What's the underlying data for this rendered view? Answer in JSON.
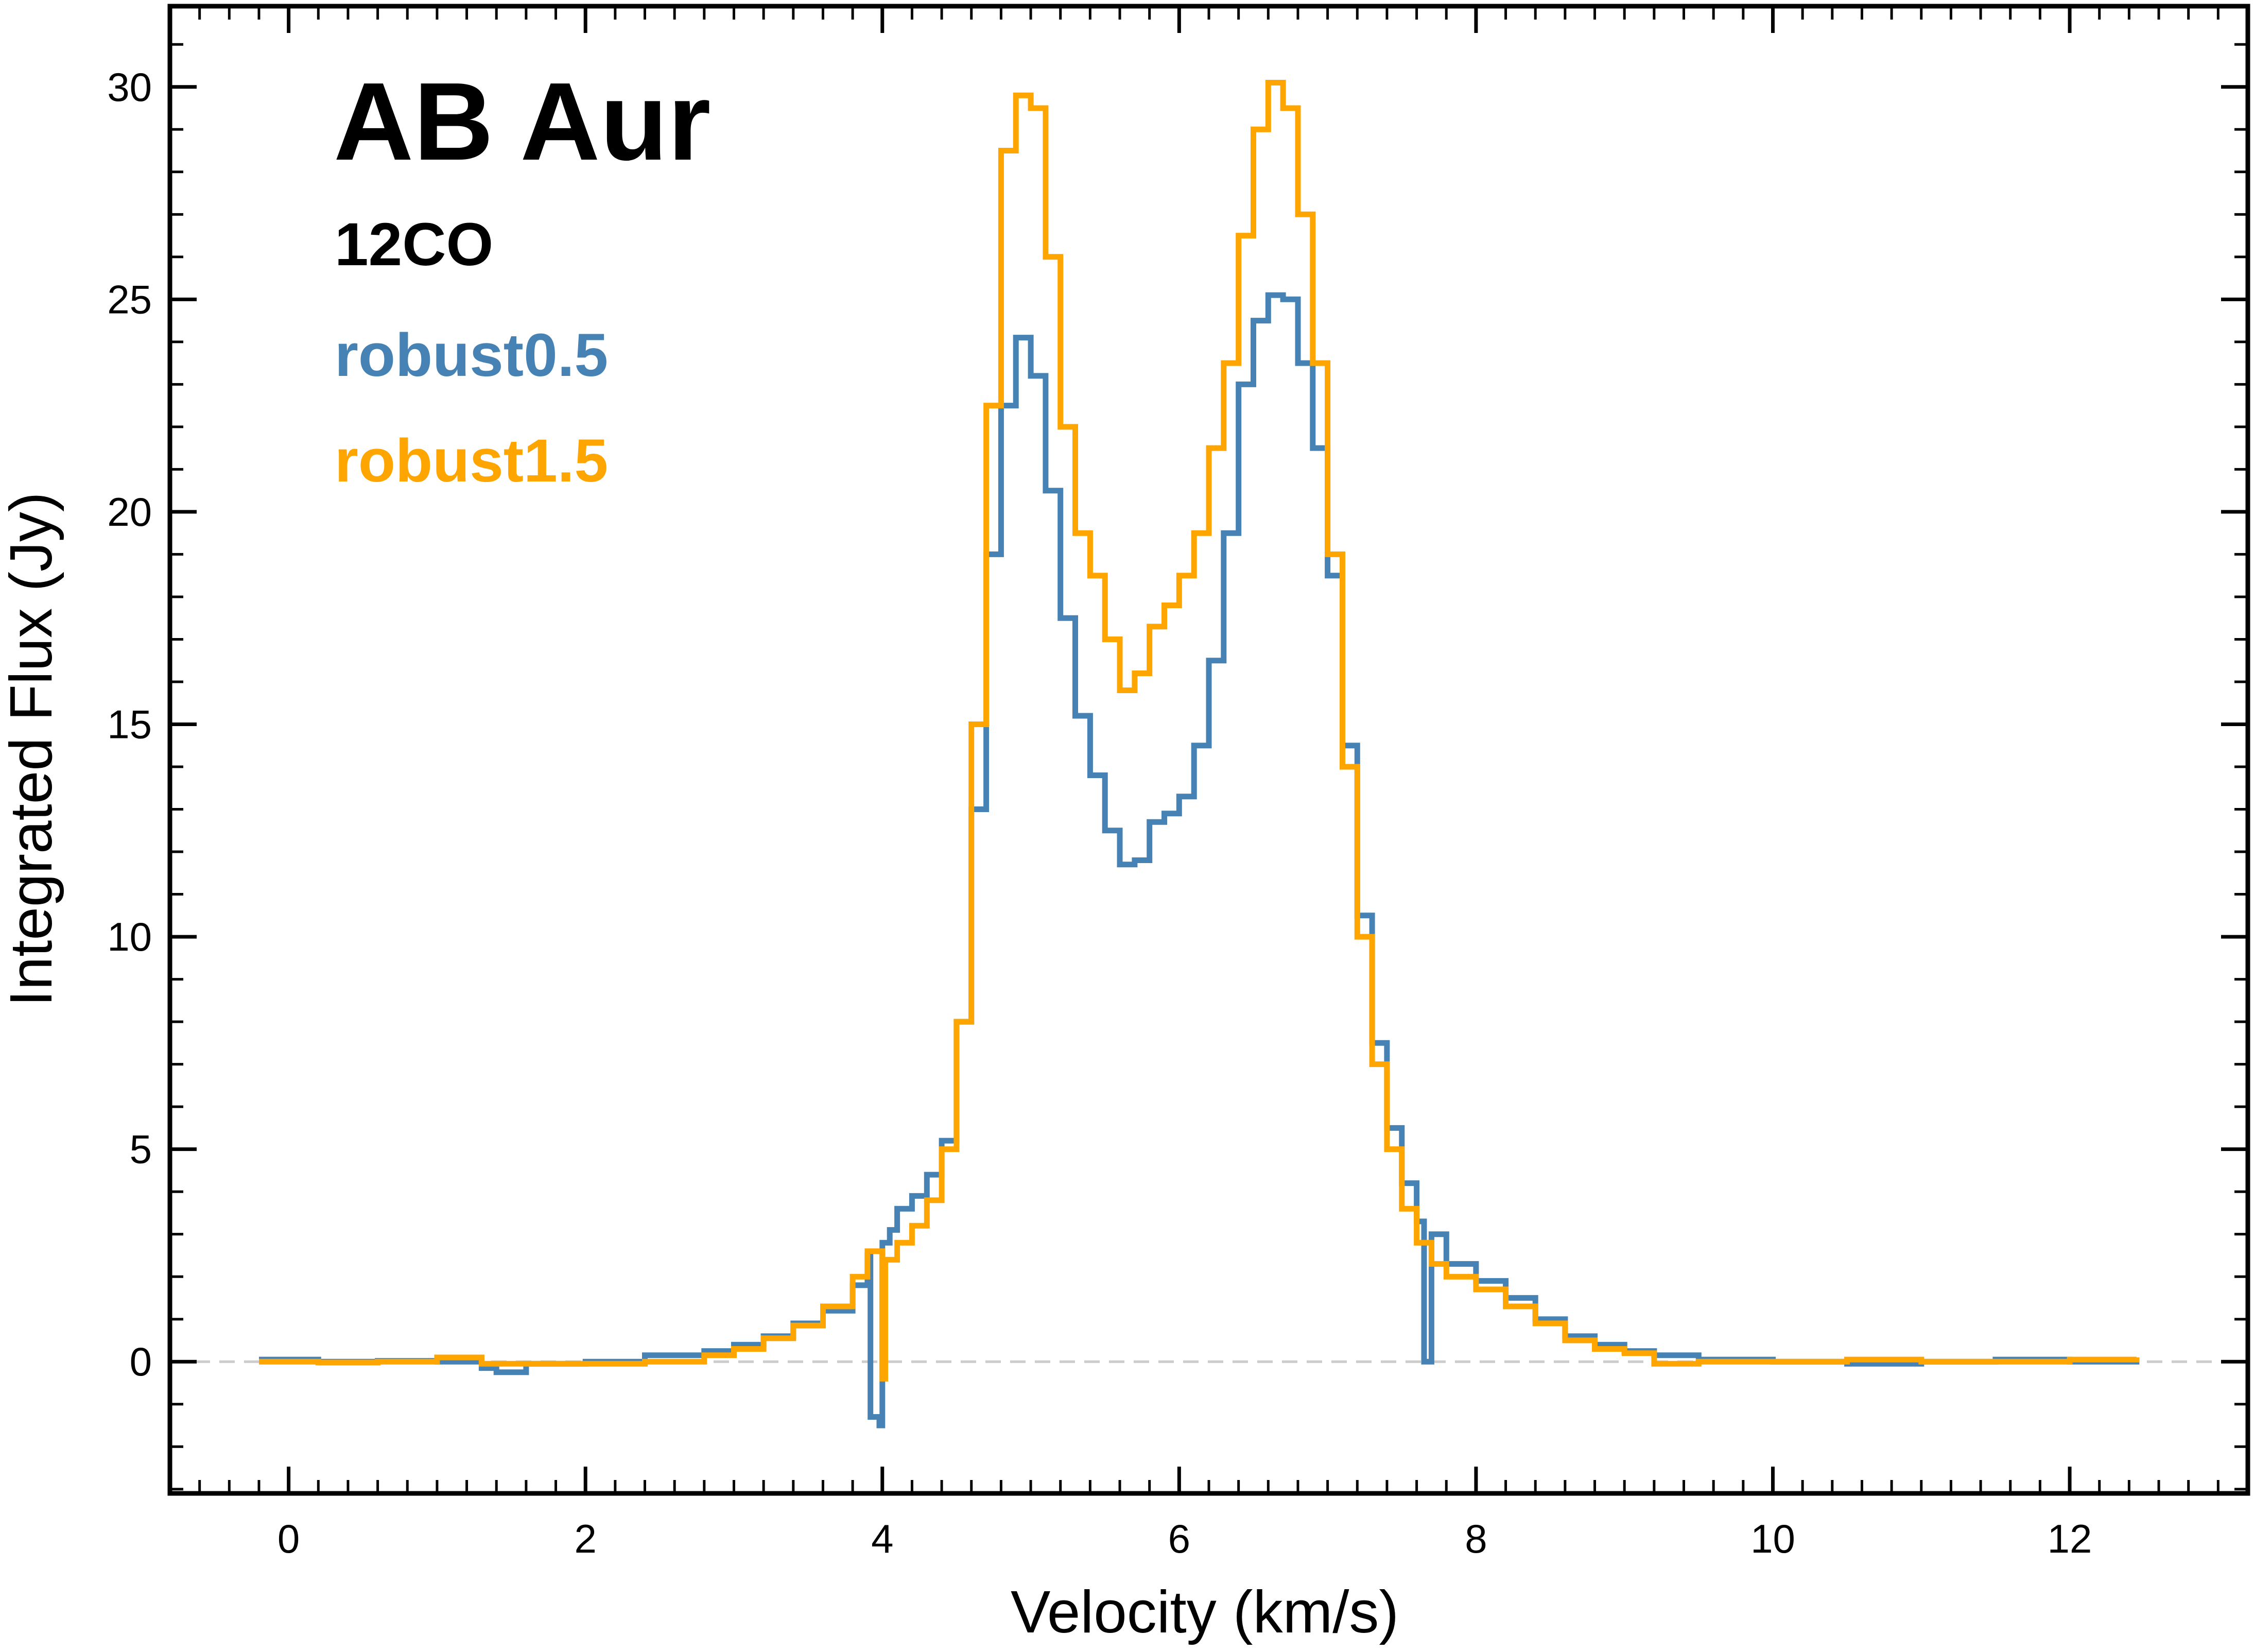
{
  "chart_data": {
    "type": "line",
    "step": true,
    "title": "AB Aur",
    "subtitle": "12CO",
    "xlabel": "Velocity (km/s)",
    "ylabel": "Integrated Flux (Jy)",
    "xlim": [
      -0.8,
      13.2
    ],
    "ylim": [
      -3.1,
      31.9
    ],
    "xticks": [
      0,
      2,
      4,
      6,
      8,
      10,
      12
    ],
    "yticks": [
      0,
      5,
      10,
      15,
      20,
      25,
      30
    ],
    "xtick_labels": [
      "0",
      "2",
      "4",
      "6",
      "8",
      "10",
      "12"
    ],
    "ytick_labels": [
      "0",
      "5",
      "10",
      "15",
      "20",
      "25",
      "30"
    ],
    "zero_line": true,
    "grid": false,
    "legend_position": "top-left",
    "series": [
      {
        "name": "robust0.5",
        "color": "#4682B4",
        "points": [
          [
            -0.2,
            0.05
          ],
          [
            0.2,
            0.0
          ],
          [
            0.6,
            0.02
          ],
          [
            1.0,
            0.0
          ],
          [
            1.3,
            -0.15
          ],
          [
            1.4,
            -0.25
          ],
          [
            1.6,
            -0.05
          ],
          [
            2.0,
            0.0
          ],
          [
            2.4,
            0.15
          ],
          [
            2.8,
            0.25
          ],
          [
            3.0,
            0.4
          ],
          [
            3.2,
            0.6
          ],
          [
            3.4,
            0.9
          ],
          [
            3.6,
            1.2
          ],
          [
            3.8,
            1.8
          ],
          [
            3.9,
            2.5
          ],
          [
            3.92,
            -1.3
          ],
          [
            3.98,
            -1.5
          ],
          [
            4.0,
            2.8
          ],
          [
            4.05,
            3.1
          ],
          [
            4.1,
            3.6
          ],
          [
            4.2,
            3.9
          ],
          [
            4.3,
            4.4
          ],
          [
            4.4,
            5.2
          ],
          [
            4.5,
            8.0
          ],
          [
            4.6,
            13.0
          ],
          [
            4.7,
            19.0
          ],
          [
            4.8,
            22.5
          ],
          [
            4.9,
            24.1
          ],
          [
            5.0,
            23.2
          ],
          [
            5.1,
            20.5
          ],
          [
            5.2,
            17.5
          ],
          [
            5.3,
            15.2
          ],
          [
            5.4,
            13.8
          ],
          [
            5.5,
            12.5
          ],
          [
            5.6,
            11.7
          ],
          [
            5.7,
            11.8
          ],
          [
            5.8,
            12.7
          ],
          [
            5.9,
            12.9
          ],
          [
            6.0,
            13.3
          ],
          [
            6.1,
            14.5
          ],
          [
            6.2,
            16.5
          ],
          [
            6.3,
            19.5
          ],
          [
            6.4,
            23.0
          ],
          [
            6.5,
            24.5
          ],
          [
            6.6,
            25.1
          ],
          [
            6.7,
            25.0
          ],
          [
            6.8,
            23.5
          ],
          [
            6.9,
            21.5
          ],
          [
            7.0,
            18.5
          ],
          [
            7.1,
            14.5
          ],
          [
            7.2,
            10.5
          ],
          [
            7.3,
            7.5
          ],
          [
            7.4,
            5.5
          ],
          [
            7.5,
            4.2
          ],
          [
            7.6,
            3.3
          ],
          [
            7.65,
            0.0
          ],
          [
            7.7,
            3.0
          ],
          [
            7.8,
            2.3
          ],
          [
            8.0,
            1.9
          ],
          [
            8.2,
            1.5
          ],
          [
            8.4,
            1.0
          ],
          [
            8.6,
            0.6
          ],
          [
            8.8,
            0.4
          ],
          [
            9.0,
            0.25
          ],
          [
            9.2,
            0.15
          ],
          [
            9.5,
            0.05
          ],
          [
            10.0,
            0.0
          ],
          [
            10.5,
            -0.05
          ],
          [
            11.0,
            0.0
          ],
          [
            11.5,
            0.05
          ],
          [
            12.0,
            0.0
          ],
          [
            12.45,
            0.1
          ]
        ]
      },
      {
        "name": "robust1.5",
        "color": "#FFA500",
        "points": [
          [
            -0.2,
            0.0
          ],
          [
            0.2,
            -0.02
          ],
          [
            0.6,
            0.0
          ],
          [
            1.0,
            0.1
          ],
          [
            1.3,
            -0.05
          ],
          [
            1.6,
            -0.05
          ],
          [
            2.0,
            -0.05
          ],
          [
            2.4,
            0.0
          ],
          [
            2.8,
            0.15
          ],
          [
            3.0,
            0.3
          ],
          [
            3.2,
            0.55
          ],
          [
            3.4,
            0.85
          ],
          [
            3.6,
            1.3
          ],
          [
            3.8,
            2.0
          ],
          [
            3.9,
            2.6
          ],
          [
            3.98,
            2.6
          ],
          [
            4.0,
            -0.4
          ],
          [
            4.02,
            2.4
          ],
          [
            4.1,
            2.8
          ],
          [
            4.2,
            3.2
          ],
          [
            4.3,
            3.8
          ],
          [
            4.4,
            5.0
          ],
          [
            4.5,
            8.0
          ],
          [
            4.6,
            15.0
          ],
          [
            4.7,
            22.5
          ],
          [
            4.8,
            28.5
          ],
          [
            4.9,
            29.8
          ],
          [
            5.0,
            29.5
          ],
          [
            5.1,
            26.0
          ],
          [
            5.2,
            22.0
          ],
          [
            5.3,
            19.5
          ],
          [
            5.4,
            18.5
          ],
          [
            5.5,
            17.0
          ],
          [
            5.6,
            15.8
          ],
          [
            5.7,
            16.2
          ],
          [
            5.8,
            17.3
          ],
          [
            5.9,
            17.8
          ],
          [
            6.0,
            18.5
          ],
          [
            6.1,
            19.5
          ],
          [
            6.2,
            21.5
          ],
          [
            6.3,
            23.5
          ],
          [
            6.4,
            26.5
          ],
          [
            6.5,
            29.0
          ],
          [
            6.6,
            30.1
          ],
          [
            6.7,
            29.5
          ],
          [
            6.8,
            27.0
          ],
          [
            6.9,
            23.5
          ],
          [
            7.0,
            19.0
          ],
          [
            7.1,
            14.0
          ],
          [
            7.2,
            10.0
          ],
          [
            7.3,
            7.0
          ],
          [
            7.4,
            5.0
          ],
          [
            7.5,
            3.6
          ],
          [
            7.6,
            2.8
          ],
          [
            7.7,
            2.3
          ],
          [
            7.8,
            2.0
          ],
          [
            8.0,
            1.7
          ],
          [
            8.2,
            1.3
          ],
          [
            8.4,
            0.9
          ],
          [
            8.6,
            0.5
          ],
          [
            8.8,
            0.3
          ],
          [
            9.0,
            0.2
          ],
          [
            9.2,
            -0.05
          ],
          [
            9.5,
            0.0
          ],
          [
            10.0,
            0.0
          ],
          [
            10.5,
            0.05
          ],
          [
            11.0,
            0.0
          ],
          [
            11.5,
            0.0
          ],
          [
            12.0,
            0.05
          ],
          [
            12.45,
            0.1
          ]
        ]
      }
    ]
  }
}
